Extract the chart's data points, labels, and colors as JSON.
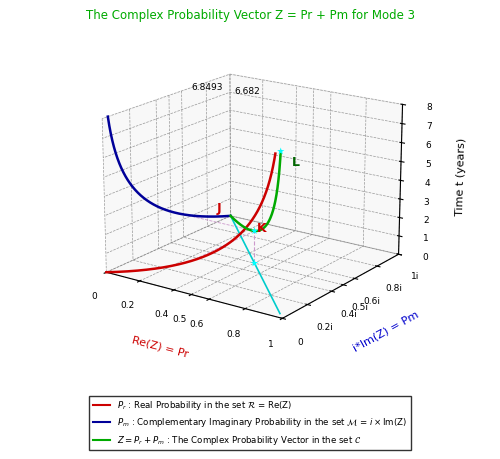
{
  "title": "The Complex Probability Vector Z = Pr + Pm for Mode 3",
  "title_color": "#00aa00",
  "xlabel": "Re(Z) = Pr",
  "ylabel": "i*Im(Z) = Pm",
  "zlabel": "Time t (years)",
  "xlim": [
    0,
    1
  ],
  "ylim": [
    0,
    1
  ],
  "zlim": [
    0,
    8
  ],
  "xticks": [
    0,
    0.2,
    0.4,
    0.5,
    0.6,
    0.8,
    1.0
  ],
  "xticklabels": [
    "0",
    "0.2",
    "0.4",
    "0.5",
    "0.6",
    "0.8",
    "1"
  ],
  "yticks": [
    0,
    0.2,
    0.4,
    0.5,
    0.6,
    0.8,
    1.0
  ],
  "yticklabels": [
    "0",
    "0.2i",
    "0.4i",
    "0.5i",
    "0.6i",
    "0.8i",
    "1i"
  ],
  "zticks": [
    0,
    1,
    2,
    3,
    4,
    5,
    6,
    7,
    8
  ],
  "zticklabels": [
    "0",
    "1",
    "2",
    "3",
    "4",
    "5",
    "6",
    "7",
    "8"
  ],
  "lambda": 0.4,
  "t_max": 8,
  "Pr_color": "#cc0000",
  "Pm_color": "#000099",
  "Z_color": "#00aa00",
  "projection_color": "#00cccc",
  "dashed_color": "#cc99cc",
  "elev": 18,
  "azim": -55,
  "figwidth": 5.0,
  "figheight": 4.59,
  "dpi": 100
}
